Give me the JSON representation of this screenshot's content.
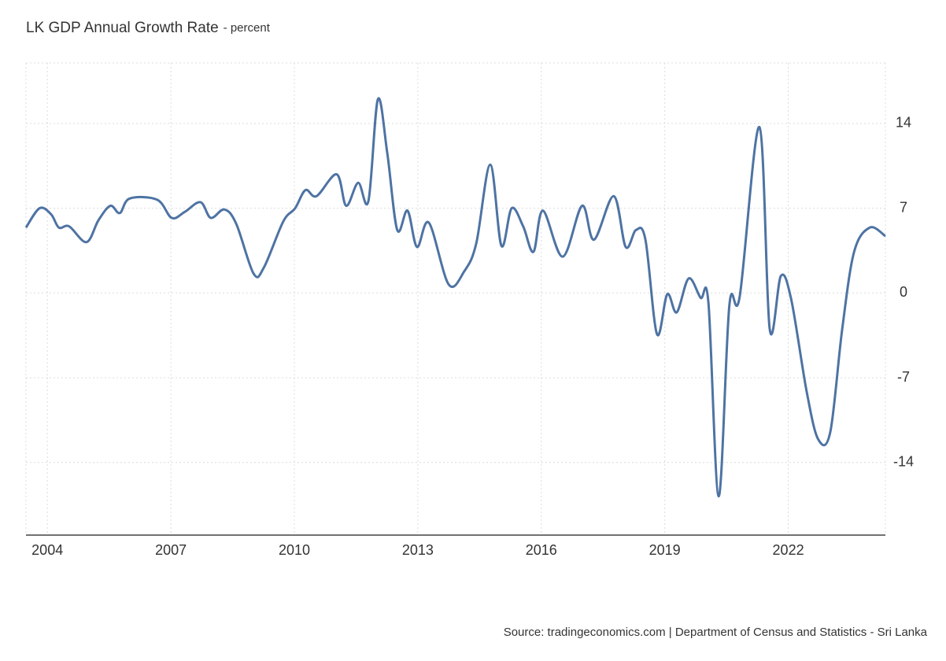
{
  "chart_data": {
    "type": "line",
    "title": "LK GDP Annual Growth Rate",
    "subtitle": "- percent",
    "source": "Source: tradingeconomics.com | Department of Census and Statistics - Sri Lanka",
    "grid": true,
    "color": "#4e73a3",
    "xlim": [
      2003.48,
      2024.36
    ],
    "xticks": [
      2004,
      2007,
      2010,
      2013,
      2016,
      2019,
      2022
    ],
    "ylim": [
      -20,
      19
    ],
    "yticks": [
      -14,
      -7,
      0,
      7,
      14
    ],
    "x": [
      2003.48,
      2003.81,
      2004.09,
      2004.28,
      2004.53,
      2004.95,
      2005.24,
      2005.53,
      2005.76,
      2006.0,
      2006.67,
      2007.02,
      2007.34,
      2007.72,
      2007.97,
      2008.3,
      2008.59,
      2009.01,
      2009.26,
      2009.73,
      2010.02,
      2010.27,
      2010.54,
      2011.03,
      2011.26,
      2011.55,
      2011.8,
      2012.03,
      2012.26,
      2012.5,
      2012.75,
      2012.98,
      2013.27,
      2013.75,
      2014.13,
      2014.42,
      2014.76,
      2015.03,
      2015.28,
      2015.56,
      2015.81,
      2016.04,
      2016.52,
      2016.99,
      2017.28,
      2017.76,
      2018.05,
      2018.3,
      2018.53,
      2018.81,
      2019.06,
      2019.29,
      2019.58,
      2019.87,
      2020.06,
      2020.31,
      2020.57,
      2020.82,
      2021.3,
      2021.55,
      2021.82,
      2022.07,
      2022.45,
      2022.73,
      2023.02,
      2023.31,
      2023.6,
      2023.98,
      2024.36
    ],
    "values": [
      5.4,
      7.0,
      6.5,
      5.4,
      5.5,
      4.2,
      6.0,
      7.2,
      6.6,
      7.8,
      7.7,
      6.2,
      6.7,
      7.5,
      6.2,
      6.9,
      5.7,
      1.6,
      2.1,
      5.9,
      7.0,
      8.5,
      8.0,
      9.8,
      7.2,
      9.1,
      7.6,
      16.0,
      11.5,
      5.2,
      6.8,
      3.8,
      5.8,
      0.7,
      1.8,
      4.1,
      10.6,
      3.9,
      7.0,
      5.5,
      3.4,
      6.8,
      3.0,
      7.2,
      4.4,
      8.0,
      3.8,
      5.2,
      4.4,
      -3.4,
      -0.1,
      -1.6,
      1.2,
      -0.4,
      -0.8,
      -16.8,
      -1.0,
      -0.3,
      13.7,
      -3.0,
      1.4,
      -0.5,
      -8.2,
      -12.1,
      -11.5,
      -3.0,
      3.4,
      5.4,
      4.7
    ]
  }
}
